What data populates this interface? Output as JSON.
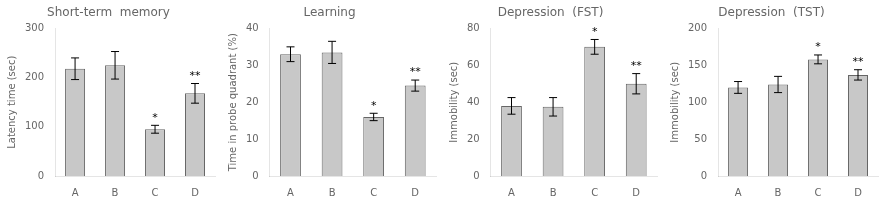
{
  "chart_data": [
    {
      "type": "bar",
      "title": "Short-term  memory",
      "ylabel": "Latency time (sec)",
      "categories": [
        "A",
        "B",
        "C",
        "D"
      ],
      "values": [
        218,
        225,
        95,
        168
      ],
      "errors": [
        22,
        28,
        8,
        20
      ],
      "color": "#c8c8c8",
      "ylim": [
        0,
        300
      ],
      "yticks": [
        0,
        100,
        200,
        300
      ],
      "grid": false,
      "annotations": [
        {
          "category": "C",
          "text": "*"
        },
        {
          "category": "D",
          "text": "**"
        }
      ]
    },
    {
      "type": "bar",
      "title": "Learning",
      "ylabel": "Time in probe quadrant (%)",
      "categories": [
        "A",
        "B",
        "C",
        "D"
      ],
      "values": [
        33,
        33.5,
        16,
        24.5
      ],
      "errors": [
        2.0,
        3.0,
        1.0,
        1.5
      ],
      "color": "#c8c8c8",
      "ylim": [
        0,
        40
      ],
      "yticks": [
        0,
        10,
        20,
        30,
        40
      ],
      "grid": false,
      "annotations": [
        {
          "category": "C",
          "text": "*"
        },
        {
          "category": "D",
          "text": "**"
        }
      ]
    },
    {
      "type": "bar",
      "title": "Depression  (FST)",
      "ylabel": "Immobility (sec)",
      "categories": [
        "A",
        "B",
        "C",
        "D"
      ],
      "values": [
        38,
        37.5,
        70,
        50
      ],
      "errors": [
        4.5,
        5.0,
        4.0,
        5.5
      ],
      "color": "#c8c8c8",
      "ylim": [
        0,
        80
      ],
      "yticks": [
        0,
        20,
        40,
        60,
        80
      ],
      "grid": false,
      "annotations": [
        {
          "category": "C",
          "text": "*"
        },
        {
          "category": "D",
          "text": "**"
        }
      ]
    },
    {
      "type": "bar",
      "title": "Depression  (TST)",
      "ylabel": "Immobility (sec)",
      "categories": [
        "A",
        "B",
        "C",
        "D"
      ],
      "values": [
        120,
        124,
        158,
        137
      ],
      "errors": [
        8,
        11,
        6,
        7
      ],
      "color": "#c8c8c8",
      "ylim": [
        0,
        200
      ],
      "yticks": [
        0,
        50,
        100,
        150,
        200
      ],
      "grid": false,
      "annotations": [
        {
          "category": "C",
          "text": "*"
        },
        {
          "category": "D",
          "text": "**"
        }
      ]
    }
  ]
}
